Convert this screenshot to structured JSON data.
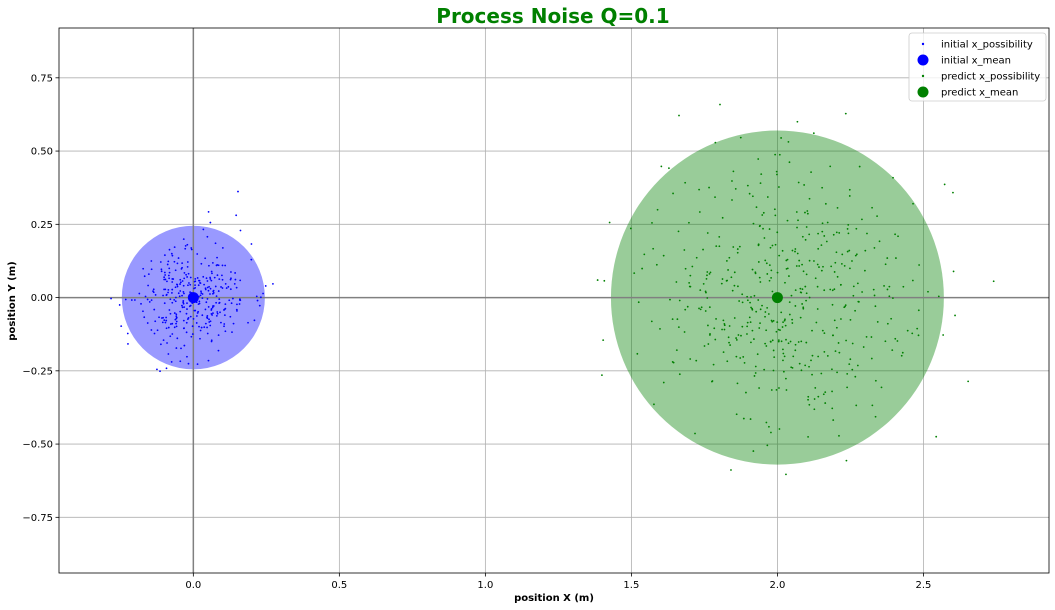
{
  "chart_data": {
    "type": "scatter",
    "title": "Process Noise Q=0.1",
    "title_color": "#008000",
    "xlabel": "position X (m)",
    "ylabel": "position Y (m)",
    "xlim": [
      -0.46,
      2.93
    ],
    "ylim": [
      -0.94,
      0.92
    ],
    "xticks": [
      0.0,
      0.5,
      1.0,
      1.5,
      2.0,
      2.5
    ],
    "xtick_labels": [
      "0.0",
      "0.5",
      "1.0",
      "1.5",
      "2.0",
      "2.5"
    ],
    "yticks": [
      -0.75,
      -0.5,
      -0.25,
      0.0,
      0.25,
      0.5,
      0.75
    ],
    "ytick_labels": [
      "−0.75",
      "−0.50",
      "−0.25",
      "0.00",
      "0.25",
      "0.50",
      "0.75"
    ],
    "grid": true,
    "legend_position": "top-right",
    "zero_lines": true,
    "series": [
      {
        "name": "initial x_possibility",
        "kind": "points",
        "color": "#0000ff",
        "center": [
          0.0,
          0.0
        ],
        "spread": 0.1,
        "count": 350,
        "seed": 11
      },
      {
        "name": "initial x_mean",
        "kind": "mean",
        "color": "#0000ff",
        "x": 0.0,
        "y": 0.0,
        "uncertainty_radius": 0.245,
        "fill_opacity": 0.4
      },
      {
        "name": "predict x_possibility",
        "kind": "points",
        "color": "#008000",
        "center": [
          2.0,
          0.0
        ],
        "spread": 0.23,
        "count": 500,
        "seed": 29
      },
      {
        "name": "predict x_mean",
        "kind": "mean",
        "color": "#008000",
        "x": 2.0,
        "y": 0.0,
        "uncertainty_radius": 0.57,
        "fill_opacity": 0.4
      }
    ]
  }
}
